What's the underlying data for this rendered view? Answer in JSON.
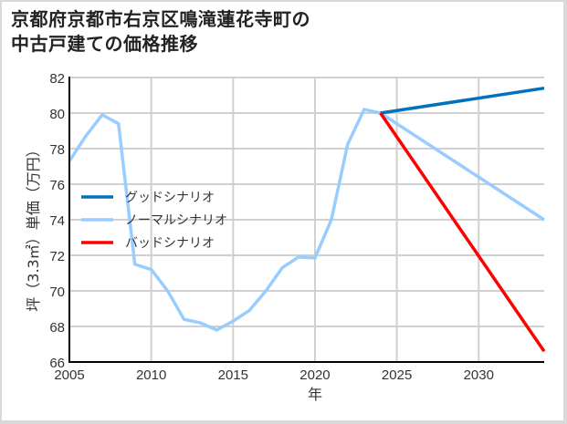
{
  "chart_data": {
    "type": "line",
    "title": "京都府京都市右京区鳴滝蓮花寺町の中古戸建ての価格推移",
    "title_lines": [
      "京都府京都市右京区鳴滝蓮花寺町の",
      "中古戸建ての価格推移"
    ],
    "xlabel": "年",
    "ylabel": "坪（3.3㎡）単価（万円）",
    "xlim": [
      2005,
      2034
    ],
    "ylim": [
      66,
      82
    ],
    "x_ticks": [
      2005,
      2010,
      2015,
      2020,
      2025,
      2030
    ],
    "y_ticks": [
      66,
      68,
      70,
      72,
      74,
      76,
      78,
      80,
      82
    ],
    "grid": true,
    "legend_position": "upper-left-inside",
    "series": [
      {
        "name": "グッドシナリオ",
        "color": "#0070c0",
        "x": [
          2024,
          2034
        ],
        "values": [
          80.0,
          81.4
        ]
      },
      {
        "name": "ノーマルシナリオ",
        "color": "#99ccff",
        "x": [
          2005,
          2006,
          2007,
          2008,
          2009,
          2010,
          2011,
          2012,
          2013,
          2014,
          2015,
          2016,
          2017,
          2018,
          2019,
          2020,
          2021,
          2022,
          2023,
          2024,
          2034
        ],
        "values": [
          77.3,
          78.7,
          79.9,
          79.4,
          71.5,
          71.2,
          70.0,
          68.4,
          68.2,
          67.8,
          68.3,
          68.9,
          70.0,
          71.3,
          71.9,
          71.85,
          74.0,
          78.25,
          80.2,
          80.0,
          74.0
        ]
      },
      {
        "name": "バッドシナリオ",
        "color": "#ff0000",
        "x": [
          2024,
          2034
        ],
        "values": [
          80.0,
          66.6
        ]
      }
    ]
  }
}
